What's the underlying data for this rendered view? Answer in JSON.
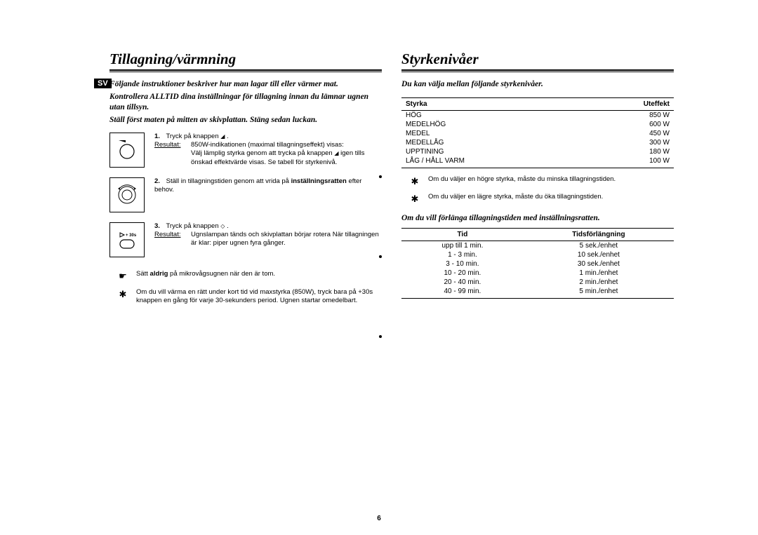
{
  "lang": "SV",
  "pagenum": "6",
  "left": {
    "title": "Tillagning/värmning",
    "intro1": "Följande instruktioner beskriver hur man lagar till eller värmer mat.",
    "intro2": "Kontrollera ALLTID dina inställningar för tillagning innan du lämnar ugnen utan tillsyn.",
    "intro3": "Ställ först maten på mitten av skivplattan. Stäng sedan luckan.",
    "step1": {
      "num": "1.",
      "line1": "Tryck på knappen ",
      "line1b": ".",
      "res_label": "Resultat:",
      "res": "850W-indikationen (maximal tillagningseffekt) visas:",
      "res2": "Välj lämplig styrka genom att trycka på knappen ",
      "res2b": " igen tills önskad effektvärde visas. Se tabell för styrkenivå."
    },
    "step2": {
      "num": "2.",
      "line": "Ställ in tillagningstiden genom att vrida på ",
      "bold": "inställningsratten",
      "after": " efter behov."
    },
    "step3": {
      "num": "3.",
      "line1": "Tryck på knappen ",
      "line1b": ".",
      "res_label": "Resultat:",
      "res": "Ugnslampan tänds och skivplattan börjar rotera När tillagningen är klar: piper ugnen fyra gånger."
    },
    "step3_icon_text": "+ 30s",
    "note1_pre": "Sätt ",
    "note1_bold": "aldrig",
    "note1_post": " på mikrovågsugnen när den är tom.",
    "note2": "Om du vill värma en rätt under kort tid vid maxstyrka (850W), tryck bara på +30s knappen en gång för varje 30-sekunders period. Ugnen startar omedelbart."
  },
  "right": {
    "title": "Styrkenivåer",
    "intro": "Du kan välja mellan följande styrkenivåer.",
    "table1": {
      "h1": "Styrka",
      "h2": "Uteffekt",
      "rows": [
        [
          "HÖG",
          "850 W"
        ],
        [
          "MEDELHÖG",
          "600 W"
        ],
        [
          "MEDEL",
          "450 W"
        ],
        [
          "MEDELLÅG",
          "300 W"
        ],
        [
          "UPPTINING",
          "180 W"
        ],
        [
          "LÅG / HÅLL VARM",
          "100 W"
        ]
      ]
    },
    "note1": "Om du väljer en högre styrka, måste du minska tillagningstiden.",
    "note2": "Om du väljer en lägre styrka, måste du öka tillagningstiden.",
    "subhead": "Om du vill förlänga tillagningstiden med inställningsratten.",
    "table2": {
      "h1": "Tid",
      "h2": "Tidsförlängning",
      "rows": [
        [
          "upp till 1 min.",
          "5 sek./enhet"
        ],
        [
          "1 - 3 min.",
          "10 sek./enhet"
        ],
        [
          "3 - 10 min.",
          "30 sek./enhet"
        ],
        [
          "10 - 20 min.",
          "1 min./enhet"
        ],
        [
          "20 - 40 min.",
          "2 min./enhet"
        ],
        [
          "40 - 99 min.",
          "5 min./enhet"
        ]
      ]
    }
  }
}
